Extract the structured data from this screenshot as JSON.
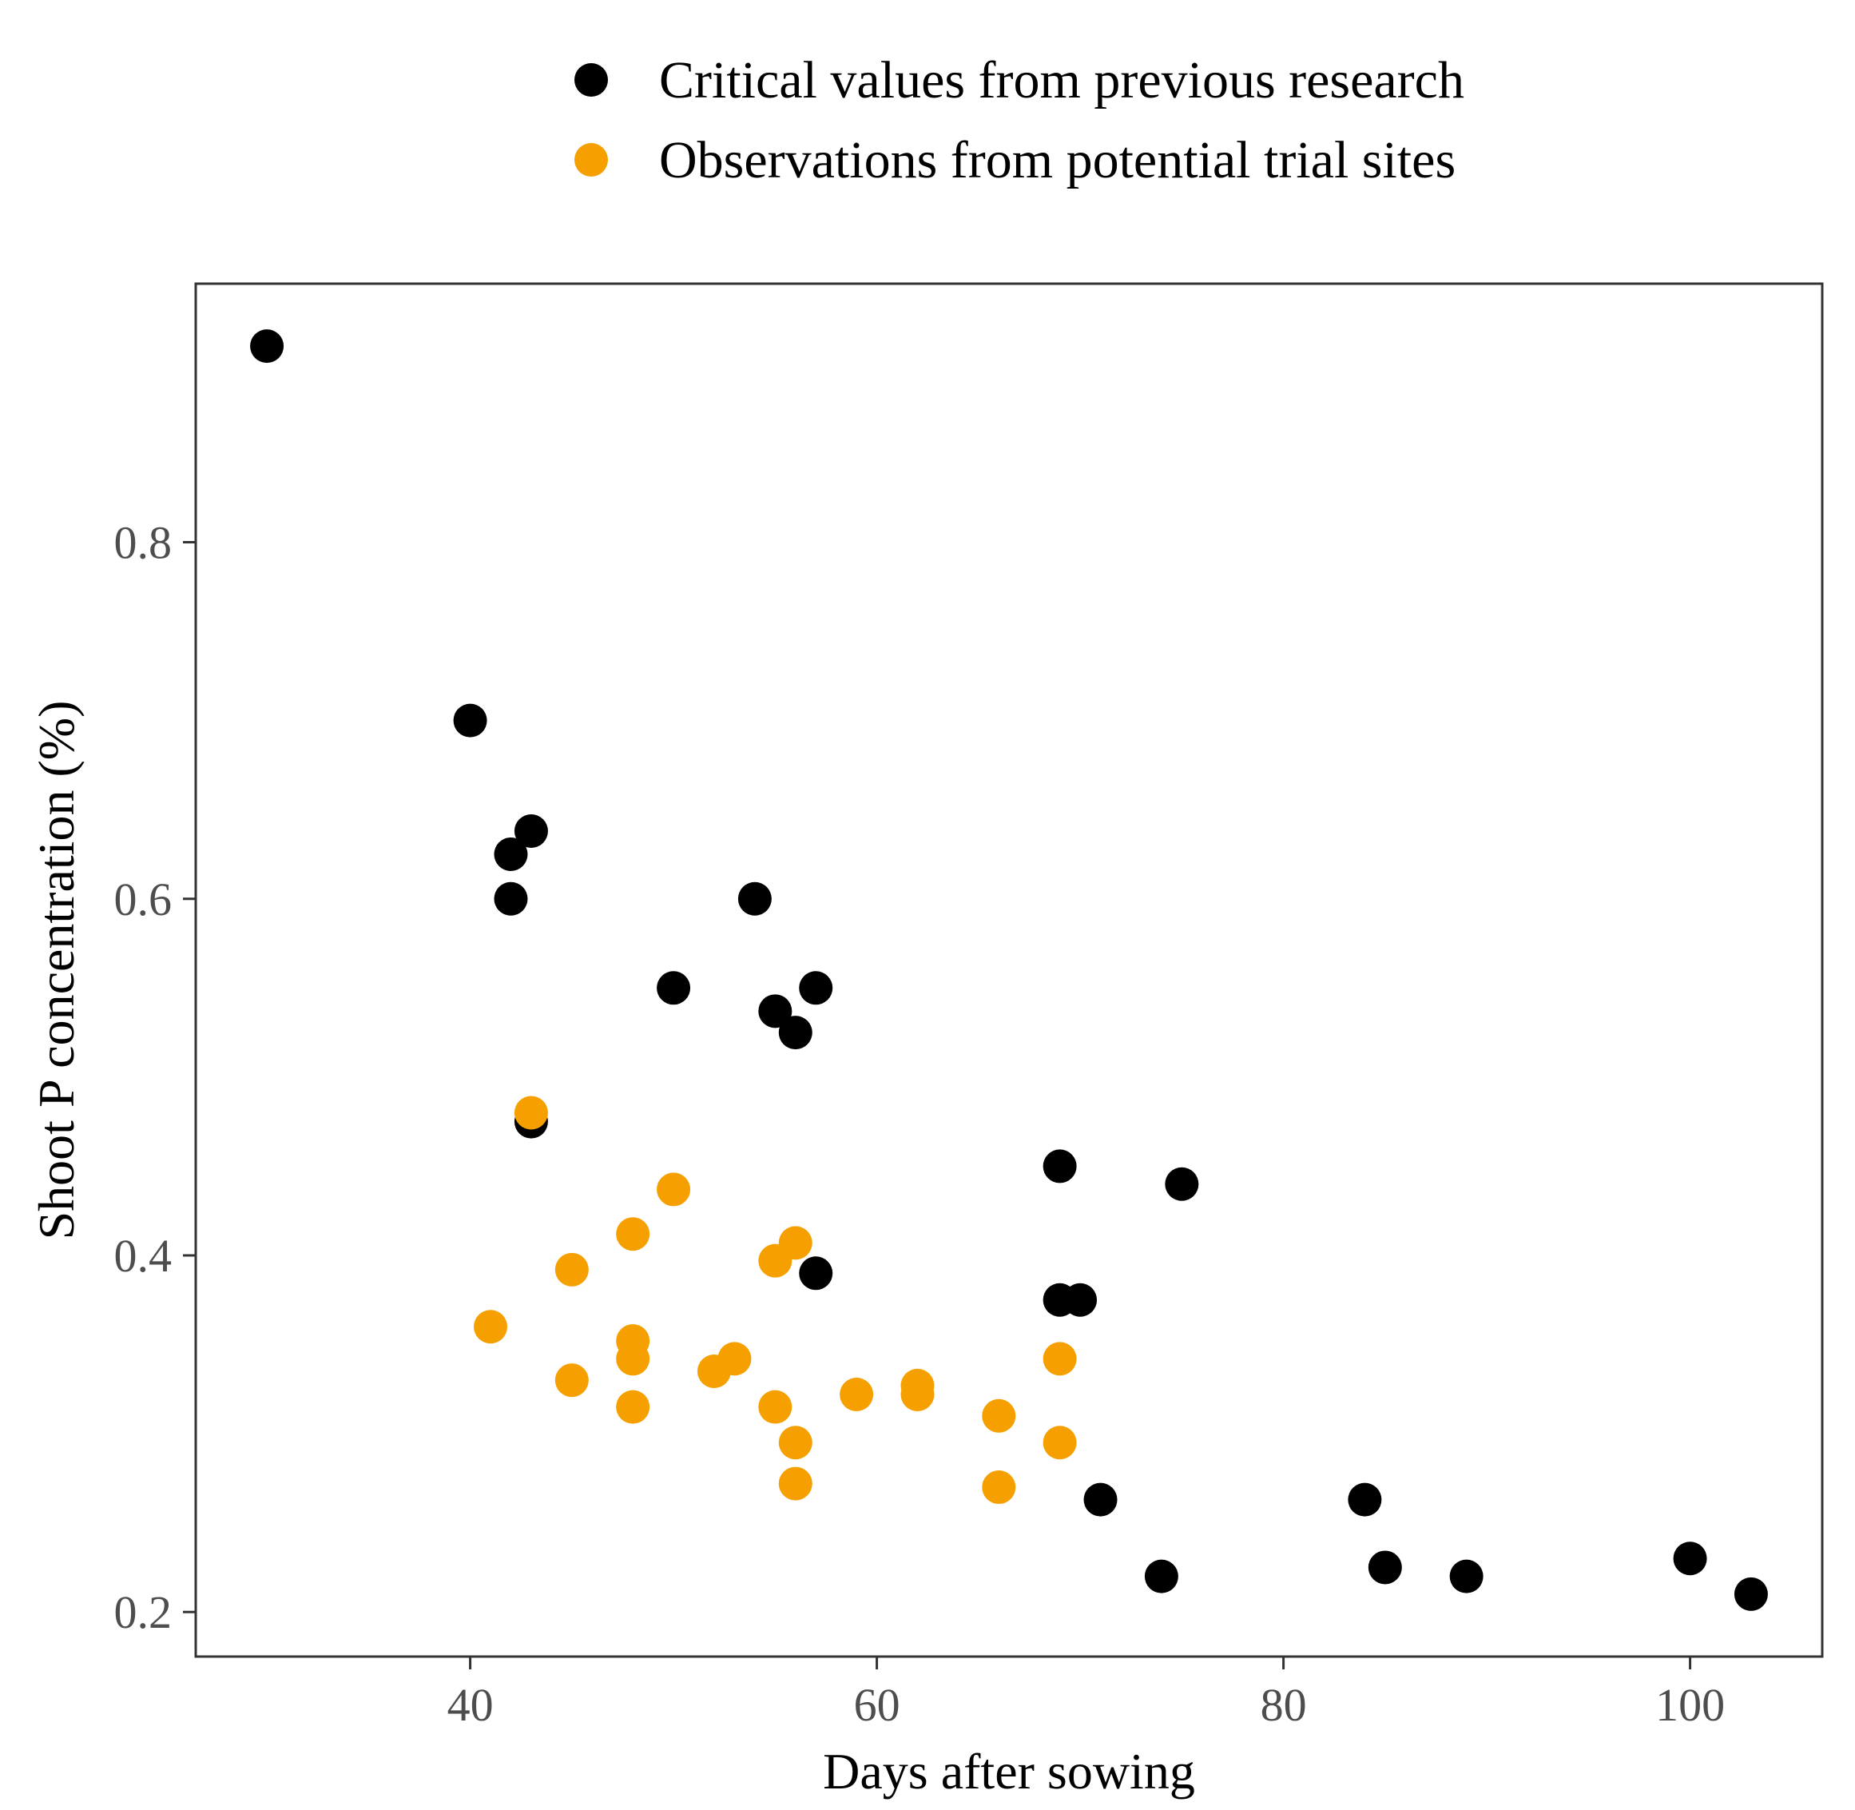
{
  "chart_data": {
    "type": "scatter",
    "title": "",
    "xlabel": "Days after sowing",
    "ylabel": "Shoot P concentration (%)",
    "xlim": [
      26.5,
      106.5
    ],
    "ylim": [
      0.175,
      0.945
    ],
    "xticks": [
      40,
      60,
      80,
      100
    ],
    "yticks": [
      0.2,
      0.4,
      0.6,
      0.8
    ],
    "xtick_labels": [
      "40",
      "60",
      "80",
      "100"
    ],
    "ytick_labels": [
      "0.2",
      "0.4",
      "0.6",
      "0.8"
    ],
    "grid": false,
    "legend_position": "top",
    "series": [
      {
        "name": "Critical values from previous research",
        "color": "#000000",
        "points": [
          [
            30,
            0.91
          ],
          [
            40,
            0.7
          ],
          [
            42,
            0.625
          ],
          [
            43,
            0.638
          ],
          [
            42,
            0.6
          ],
          [
            54,
            0.6
          ],
          [
            50,
            0.55
          ],
          [
            57,
            0.55
          ],
          [
            55,
            0.537
          ],
          [
            56,
            0.525
          ],
          [
            43,
            0.475
          ],
          [
            69,
            0.45
          ],
          [
            75,
            0.44
          ],
          [
            57,
            0.39
          ],
          [
            69,
            0.375
          ],
          [
            70,
            0.375
          ],
          [
            71,
            0.263
          ],
          [
            84,
            0.263
          ],
          [
            74,
            0.22
          ],
          [
            85,
            0.225
          ],
          [
            89,
            0.22
          ],
          [
            100,
            0.23
          ],
          [
            103,
            0.21
          ]
        ]
      },
      {
        "name": "Observations from potential trial sites",
        "color": "#f5a000",
        "points": [
          [
            43,
            0.48
          ],
          [
            50,
            0.437
          ],
          [
            48,
            0.412
          ],
          [
            56,
            0.407
          ],
          [
            55,
            0.397
          ],
          [
            45,
            0.392
          ],
          [
            41,
            0.36
          ],
          [
            48,
            0.352
          ],
          [
            48,
            0.342
          ],
          [
            53,
            0.342
          ],
          [
            69,
            0.342
          ],
          [
            52,
            0.335
          ],
          [
            45,
            0.33
          ],
          [
            62,
            0.327
          ],
          [
            59,
            0.322
          ],
          [
            62,
            0.322
          ],
          [
            48,
            0.315
          ],
          [
            55,
            0.315
          ],
          [
            66,
            0.31
          ],
          [
            56,
            0.295
          ],
          [
            69,
            0.295
          ],
          [
            56,
            0.272
          ],
          [
            66,
            0.27
          ]
        ]
      }
    ]
  }
}
